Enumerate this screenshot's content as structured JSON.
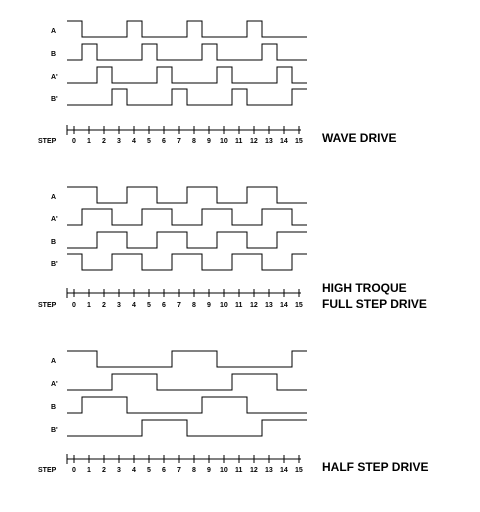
{
  "panels": [
    {
      "id": "wave",
      "title_lines": [
        "WAVE DRIVE"
      ],
      "step_label": "STEP",
      "signals": [
        {
          "label": "A",
          "levels": [
            1,
            0,
            0,
            0,
            1,
            0,
            0,
            0,
            1,
            0,
            0,
            0,
            1,
            0,
            0,
            0
          ]
        },
        {
          "label": "B",
          "levels": [
            0,
            1,
            0,
            0,
            0,
            1,
            0,
            0,
            0,
            1,
            0,
            0,
            0,
            1,
            0,
            0
          ]
        },
        {
          "label": "A'",
          "levels": [
            0,
            0,
            1,
            0,
            0,
            0,
            1,
            0,
            0,
            0,
            1,
            0,
            0,
            0,
            1,
            0
          ]
        },
        {
          "label": "B'",
          "levels": [
            0,
            0,
            0,
            1,
            0,
            0,
            0,
            1,
            0,
            0,
            0,
            1,
            0,
            0,
            0,
            1
          ]
        }
      ],
      "steps": [
        "0",
        "1",
        "2",
        "3",
        "4",
        "5",
        "6",
        "7",
        "8",
        "9",
        "10",
        "11",
        "12",
        "13",
        "14",
        "15"
      ]
    },
    {
      "id": "full",
      "title_lines": [
        "HIGH TROQUE",
        "FULL STEP DRIVE"
      ],
      "step_label": "STEP",
      "signals": [
        {
          "label": "A",
          "levels": [
            1,
            1,
            0,
            0,
            1,
            1,
            0,
            0,
            1,
            1,
            0,
            0,
            1,
            1,
            0,
            0
          ]
        },
        {
          "label": "A'",
          "levels": [
            0,
            1,
            1,
            0,
            0,
            1,
            1,
            0,
            0,
            1,
            1,
            0,
            0,
            1,
            1,
            0
          ]
        },
        {
          "label": "B",
          "levels": [
            0,
            0,
            1,
            1,
            0,
            0,
            1,
            1,
            0,
            0,
            1,
            1,
            0,
            0,
            1,
            1
          ]
        },
        {
          "label": "B'",
          "levels": [
            1,
            0,
            0,
            1,
            1,
            0,
            0,
            1,
            1,
            0,
            0,
            1,
            1,
            0,
            0,
            1
          ]
        }
      ],
      "steps": [
        "0",
        "1",
        "2",
        "3",
        "4",
        "5",
        "6",
        "7",
        "8",
        "9",
        "10",
        "11",
        "12",
        "13",
        "14",
        "15"
      ]
    },
    {
      "id": "half",
      "title_lines": [
        "HALF STEP DRIVE"
      ],
      "step_label": "STEP",
      "signals": [
        {
          "label": "A",
          "levels": [
            1,
            1,
            0,
            0,
            0,
            0,
            0,
            1,
            1,
            1,
            0,
            0,
            0,
            0,
            0,
            1
          ]
        },
        {
          "label": "A'",
          "levels": [
            0,
            0,
            0,
            1,
            1,
            1,
            0,
            0,
            0,
            0,
            0,
            1,
            1,
            1,
            0,
            0
          ]
        },
        {
          "label": "B",
          "levels": [
            0,
            1,
            1,
            1,
            0,
            0,
            0,
            0,
            0,
            1,
            1,
            1,
            0,
            0,
            0,
            0
          ]
        },
        {
          "label": "B'",
          "levels": [
            0,
            0,
            0,
            0,
            0,
            1,
            1,
            1,
            0,
            0,
            0,
            0,
            0,
            1,
            1,
            1
          ]
        }
      ],
      "steps": [
        "0",
        "1",
        "2",
        "3",
        "4",
        "5",
        "6",
        "7",
        "8",
        "9",
        "10",
        "11",
        "12",
        "13",
        "14",
        "15"
      ]
    }
  ]
}
